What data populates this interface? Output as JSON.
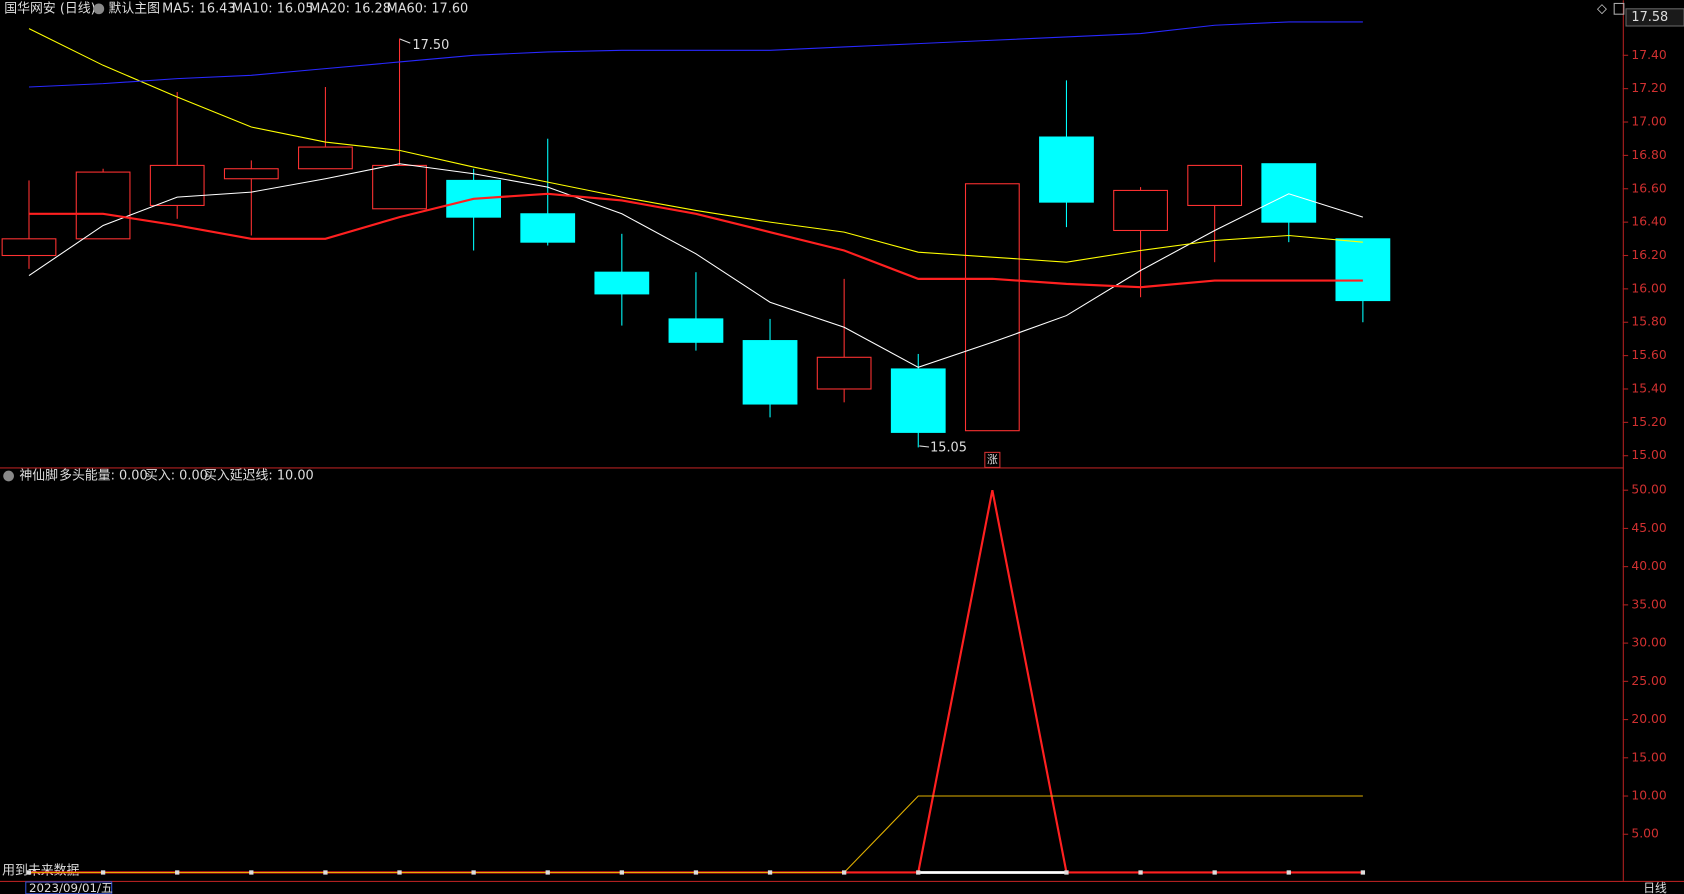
{
  "chart_data": [
    {
      "type": "candlestick",
      "title": "国华网安 (日线)",
      "subtitle": "默认主图",
      "open": [
        16.2,
        16.3,
        16.5,
        16.66,
        16.72,
        16.48,
        16.65,
        16.45,
        16.1,
        15.82,
        15.69,
        15.4,
        15.52,
        15.15,
        16.91,
        16.35,
        16.5,
        16.75,
        16.3
      ],
      "high": [
        16.65,
        16.72,
        17.18,
        16.77,
        17.21,
        17.5,
        16.72,
        16.9,
        16.33,
        16.1,
        15.82,
        16.06,
        15.61,
        16.63,
        17.25,
        16.61,
        16.74,
        16.75,
        16.3
      ],
      "low": [
        16.12,
        16.3,
        16.42,
        16.32,
        16.72,
        16.48,
        16.23,
        16.26,
        15.78,
        15.63,
        15.23,
        15.32,
        15.05,
        15.15,
        16.37,
        15.95,
        16.16,
        16.28,
        15.8
      ],
      "close": [
        16.3,
        16.7,
        16.74,
        16.72,
        16.85,
        16.74,
        16.43,
        16.28,
        15.97,
        15.68,
        15.31,
        15.59,
        15.14,
        16.63,
        16.52,
        16.59,
        16.74,
        16.4,
        15.93
      ],
      "up_color": "#ff3232",
      "down_color": "#00ffff",
      "series": [
        {
          "name": "MA5: 16.43",
          "color": "#ffffff",
          "values": [
            16.08,
            16.38,
            16.55,
            16.58,
            16.66,
            16.75,
            16.69,
            16.61,
            16.45,
            16.21,
            15.92,
            15.77,
            15.53,
            15.68,
            15.84,
            16.11,
            16.35,
            16.57,
            16.43
          ]
        },
        {
          "name": "MA10: 16.05",
          "color": "#ff2020",
          "values": [
            16.45,
            16.45,
            16.38,
            16.3,
            16.3,
            16.43,
            16.54,
            16.57,
            16.53,
            16.45,
            16.34,
            16.23,
            16.06,
            16.06,
            16.03,
            16.01,
            16.05,
            16.05,
            16.05
          ]
        },
        {
          "name": "MA20: 16.28",
          "color": "#ffff00",
          "values": [
            17.56,
            17.34,
            17.15,
            16.97,
            16.88,
            16.83,
            16.73,
            16.64,
            16.55,
            16.47,
            16.4,
            16.34,
            16.22,
            16.19,
            16.16,
            16.23,
            16.29,
            16.32,
            16.28
          ]
        },
        {
          "name": "MA60: 17.60",
          "color": "#2828ff",
          "values": [
            17.21,
            17.23,
            17.26,
            17.28,
            17.32,
            17.36,
            17.4,
            17.42,
            17.43,
            17.43,
            17.43,
            17.45,
            17.47,
            17.49,
            17.51,
            17.53,
            17.58,
            17.6,
            17.6
          ]
        }
      ],
      "ylim": [
        14.93,
        17.73
      ],
      "yticks": [
        {
          "value": 15,
          "label": "15.00"
        },
        {
          "value": 15.2,
          "label": "15.20"
        },
        {
          "value": 15.4,
          "label": "15.40"
        },
        {
          "value": 15.6,
          "label": "15.60"
        },
        {
          "value": 15.8,
          "label": "15.80"
        },
        {
          "value": 16,
          "label": "16.00"
        },
        {
          "value": 16.2,
          "label": "16.20"
        },
        {
          "value": 16.4,
          "label": "16.40"
        },
        {
          "value": 16.6,
          "label": "16.60"
        },
        {
          "value": 16.8,
          "label": "16.80"
        },
        {
          "value": 17,
          "label": "17.00"
        },
        {
          "value": 17.2,
          "label": "17.20"
        },
        {
          "value": 17.4,
          "label": "17.40"
        }
      ],
      "current_price_label": "17.58",
      "annotations": [
        "17.50",
        "15.05",
        "涨"
      ]
    },
    {
      "type": "line",
      "title": "神仙脚",
      "series": [
        {
          "name": "多头能量: 0.00",
          "color": "#ffffff",
          "values": [
            null,
            null,
            null,
            null,
            null,
            null,
            null,
            null,
            null,
            null,
            null,
            null,
            0,
            0,
            0,
            null,
            null,
            null,
            null
          ]
        },
        {
          "name": "买入: 0.00",
          "color": "#ff2020",
          "values": [
            0,
            0,
            0,
            0,
            0,
            0,
            0,
            0,
            0,
            0,
            0,
            0,
            0,
            50,
            0,
            0,
            0,
            0,
            0
          ]
        },
        {
          "name": "买入延迟线: 10.00",
          "color": "#e0b000",
          "values": [
            0,
            0,
            0,
            0,
            0,
            0,
            0,
            0,
            0,
            0,
            0,
            0,
            10,
            10,
            10,
            10,
            10,
            10,
            10
          ]
        }
      ],
      "ylim": [
        -1.1,
        52.7
      ],
      "yticks": [
        {
          "value": 5,
          "label": "5.00"
        },
        {
          "value": 10,
          "label": "10.00"
        },
        {
          "value": 15,
          "label": "15.00"
        },
        {
          "value": 20,
          "label": "20.00"
        },
        {
          "value": 25,
          "label": "25.00"
        },
        {
          "value": 30,
          "label": "30.00"
        },
        {
          "value": 35,
          "label": "35.00"
        },
        {
          "value": 40,
          "label": "40.00"
        },
        {
          "value": 45,
          "label": "45.00"
        },
        {
          "value": 50,
          "label": "50.00"
        }
      ]
    }
  ],
  "footer": {
    "note": "用到未来数据",
    "date": "2023/09/01/五",
    "period": "日线"
  }
}
